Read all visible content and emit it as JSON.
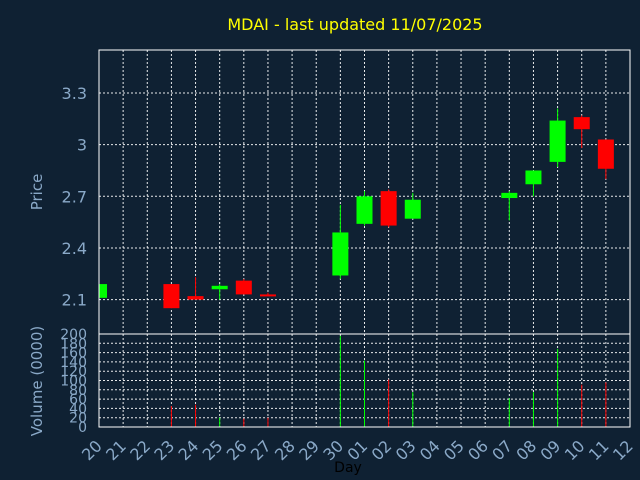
{
  "colors": {
    "background": "#0f2133",
    "up": "#00ff00",
    "down": "#ff0000",
    "title": "#ffff00",
    "text": "#8aa9c8",
    "grid": "#ffffff"
  },
  "chart_data": {
    "type": "candlestick",
    "title": "MDAI - last updated 11/07/2025",
    "xlabel": "Day",
    "ylabel": "Price",
    "volume_ylabel": "Volume (0000)",
    "ylim": [
      1.9,
      3.55
    ],
    "yticks": [
      "2.1",
      "2.4",
      "2.7",
      "3",
      "3.3"
    ],
    "volume_ylim": [
      0,
      200
    ],
    "volume_yticks": [
      "0",
      "20",
      "40",
      "60",
      "80",
      "100",
      "120",
      "140",
      "160",
      "180",
      "200"
    ],
    "grid": true,
    "x_tick_labels": [
      "20",
      "21",
      "22",
      "23",
      "24",
      "25",
      "26",
      "27",
      "28",
      "29",
      "30",
      "01",
      "02",
      "03",
      "04",
      "05",
      "06",
      "07",
      "08",
      "09",
      "10",
      "11",
      "12"
    ],
    "candles": [
      {
        "day": "20",
        "open": 2.11,
        "high": 2.19,
        "low": 2.11,
        "close": 2.19,
        "volume": 0
      },
      {
        "day": "23",
        "open": 2.19,
        "high": 2.19,
        "low": 2.05,
        "close": 2.05,
        "volume": 45
      },
      {
        "day": "24",
        "open": 2.12,
        "high": 2.23,
        "low": 2.1,
        "close": 2.1,
        "volume": 48
      },
      {
        "day": "25",
        "open": 2.16,
        "high": 2.19,
        "low": 2.1,
        "close": 2.18,
        "volume": 20
      },
      {
        "day": "26",
        "open": 2.21,
        "high": 2.22,
        "low": 2.13,
        "close": 2.13,
        "volume": 18
      },
      {
        "day": "27",
        "open": 2.13,
        "high": 2.14,
        "low": 2.12,
        "close": 2.12,
        "volume": 20
      },
      {
        "day": "30",
        "open": 2.24,
        "high": 2.65,
        "low": 2.22,
        "close": 2.49,
        "volume": 196
      },
      {
        "day": "01",
        "open": 2.54,
        "high": 2.73,
        "low": 2.53,
        "close": 2.7,
        "volume": 143
      },
      {
        "day": "02",
        "open": 2.73,
        "high": 2.74,
        "low": 2.52,
        "close": 2.53,
        "volume": 102
      },
      {
        "day": "03",
        "open": 2.57,
        "high": 2.72,
        "low": 2.57,
        "close": 2.68,
        "volume": 75
      },
      {
        "day": "07",
        "open": 2.69,
        "high": 2.73,
        "low": 2.56,
        "close": 2.72,
        "volume": 62
      },
      {
        "day": "08",
        "open": 2.77,
        "high": 2.85,
        "low": 2.7,
        "close": 2.85,
        "volume": 75
      },
      {
        "day": "09",
        "open": 2.9,
        "high": 3.21,
        "low": 2.87,
        "close": 3.14,
        "volume": 168
      },
      {
        "day": "10",
        "open": 3.16,
        "high": 3.17,
        "low": 2.98,
        "close": 3.09,
        "volume": 91
      },
      {
        "day": "11",
        "open": 3.03,
        "high": 3.03,
        "low": 2.8,
        "close": 2.86,
        "volume": 96
      }
    ]
  }
}
